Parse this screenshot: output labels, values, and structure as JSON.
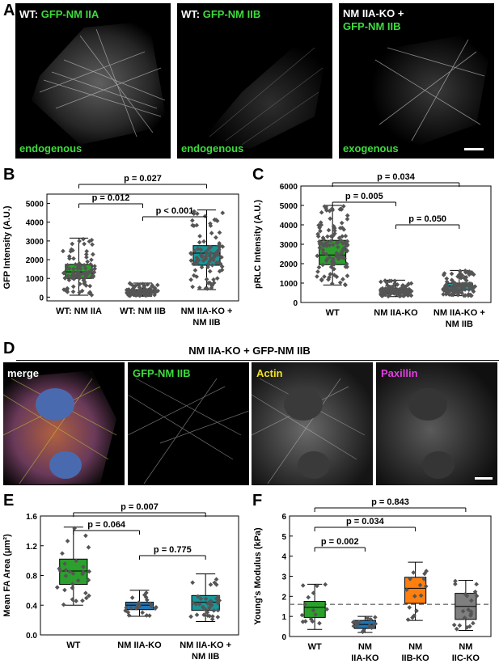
{
  "panel_a": {
    "letter": "A",
    "images": [
      {
        "prefix": "WT: ",
        "green": "GFP-NM IIA",
        "bottom": "endogenous"
      },
      {
        "prefix": "WT: ",
        "green": "GFP-NM IIB",
        "bottom": "endogenous"
      },
      {
        "prefix": "NM IIA-KO +",
        "green": "GFP-NM IIB",
        "bottom": "exogenous"
      }
    ]
  },
  "panel_d": {
    "letter": "D",
    "title": "NM IIA-KO + GFP-NM IIB",
    "images": [
      {
        "label": "merge"
      },
      {
        "label": "GFP-NM IIB"
      },
      {
        "label": "Actin"
      },
      {
        "label": "Paxillin"
      }
    ]
  },
  "chart_data": [
    {
      "panel": "B",
      "type": "box",
      "ylabel": "GFP Intensity (A.U.)",
      "ylim": [
        -200,
        5500
      ],
      "yticks": [
        0,
        1000,
        2000,
        3000,
        4000,
        5000
      ],
      "categories": [
        "WT: NM IIA",
        "WT: NM IIB",
        "NM IIA-KO +\nNM IIB"
      ],
      "boxes": [
        {
          "min": 100,
          "q1": 1000,
          "median": 1350,
          "q3": 1750,
          "max": 3150,
          "color": "#2ca02c",
          "n": 90
        },
        {
          "min": 50,
          "q1": 220,
          "median": 300,
          "q3": 400,
          "max": 750,
          "color": "#2075b4",
          "n": 90
        },
        {
          "min": 400,
          "q1": 1700,
          "median": 2350,
          "q3": 2750,
          "max": 4650,
          "color": "#18979a",
          "n": 90
        }
      ],
      "comparisons": [
        {
          "text": "p = 0.027",
          "from": 0,
          "to": 2
        },
        {
          "text": "p = 0.012",
          "from": 0,
          "to": 1
        },
        {
          "text": "p < 0.001",
          "from": 1,
          "to": 2
        }
      ]
    },
    {
      "panel": "C",
      "type": "box",
      "ylabel": "pRLC Intensity (A.U.)",
      "ylim": [
        0,
        6000
      ],
      "yticks": [
        0,
        1000,
        2000,
        3000,
        4000,
        5000,
        6000
      ],
      "categories": [
        "WT",
        "NM IIA-KO",
        "NM IIA-KO +\nNM IIB"
      ],
      "boxes": [
        {
          "min": 900,
          "q1": 1950,
          "median": 2450,
          "q3": 3200,
          "max": 5000,
          "color": "#2ca02c",
          "n": 110
        },
        {
          "min": 300,
          "q1": 450,
          "median": 550,
          "q3": 700,
          "max": 1150,
          "color": "#2075b4",
          "n": 110
        },
        {
          "min": 350,
          "q1": 650,
          "median": 850,
          "q3": 1000,
          "max": 1650,
          "color": "#18979a",
          "n": 110
        }
      ],
      "comparisons": [
        {
          "text": "p = 0.034",
          "from": 0,
          "to": 2
        },
        {
          "text": "p = 0.005",
          "from": 0,
          "to": 1
        },
        {
          "text": "p = 0.050",
          "from": 1,
          "to": 2
        }
      ]
    },
    {
      "panel": "E",
      "type": "box",
      "ylabel": "Mean FA Area (μm²)",
      "ylim": [
        0,
        1.6
      ],
      "yticks": [
        0.0,
        0.4,
        0.8,
        1.2,
        1.6
      ],
      "categories": [
        "WT",
        "NM IIA-KO",
        "NM IIA-KO +\nNM IIB"
      ],
      "boxes": [
        {
          "min": 0.4,
          "q1": 0.68,
          "median": 0.86,
          "q3": 1.02,
          "max": 1.45,
          "color": "#2ca02c",
          "n": 30
        },
        {
          "min": 0.25,
          "q1": 0.34,
          "median": 0.4,
          "q3": 0.44,
          "max": 0.6,
          "color": "#2075b4",
          "n": 25
        },
        {
          "min": 0.18,
          "q1": 0.33,
          "median": 0.44,
          "q3": 0.53,
          "max": 0.82,
          "color": "#18979a",
          "n": 35
        }
      ],
      "comparisons": [
        {
          "text": "p = 0.007",
          "from": 0,
          "to": 2
        },
        {
          "text": "p = 0.064",
          "from": 0,
          "to": 1
        },
        {
          "text": "p = 0.775",
          "from": 1,
          "to": 2
        }
      ]
    },
    {
      "panel": "F",
      "type": "box",
      "ylabel": "Young's Modulus (kPa)",
      "ylim": [
        0,
        6
      ],
      "yticks": [
        0,
        1,
        2,
        3,
        4,
        5,
        6
      ],
      "reference_line": 1.6,
      "categories": [
        "WT",
        "NM\nIIA-KO",
        "NM\nIIB-KO",
        "NM\nIIC-KO"
      ],
      "boxes": [
        {
          "min": 0.35,
          "q1": 0.95,
          "median": 1.45,
          "q3": 1.75,
          "max": 2.6,
          "color": "#2ca02c",
          "n": 15
        },
        {
          "min": 0.2,
          "q1": 0.4,
          "median": 0.6,
          "q3": 0.8,
          "max": 1.0,
          "color": "#2075b4",
          "n": 15
        },
        {
          "min": 0.8,
          "q1": 1.65,
          "median": 2.4,
          "q3": 2.95,
          "max": 3.7,
          "color": "#ff7f0e",
          "n": 15
        },
        {
          "min": 0.3,
          "q1": 0.85,
          "median": 1.5,
          "q3": 2.15,
          "max": 2.8,
          "color": "#7f7f7f",
          "n": 20
        }
      ],
      "comparisons": [
        {
          "text": "p = 0.843",
          "from": 0,
          "to": 3
        },
        {
          "text": "p = 0.034",
          "from": 0,
          "to": 2
        },
        {
          "text": "p = 0.002",
          "from": 0,
          "to": 1
        }
      ]
    }
  ]
}
